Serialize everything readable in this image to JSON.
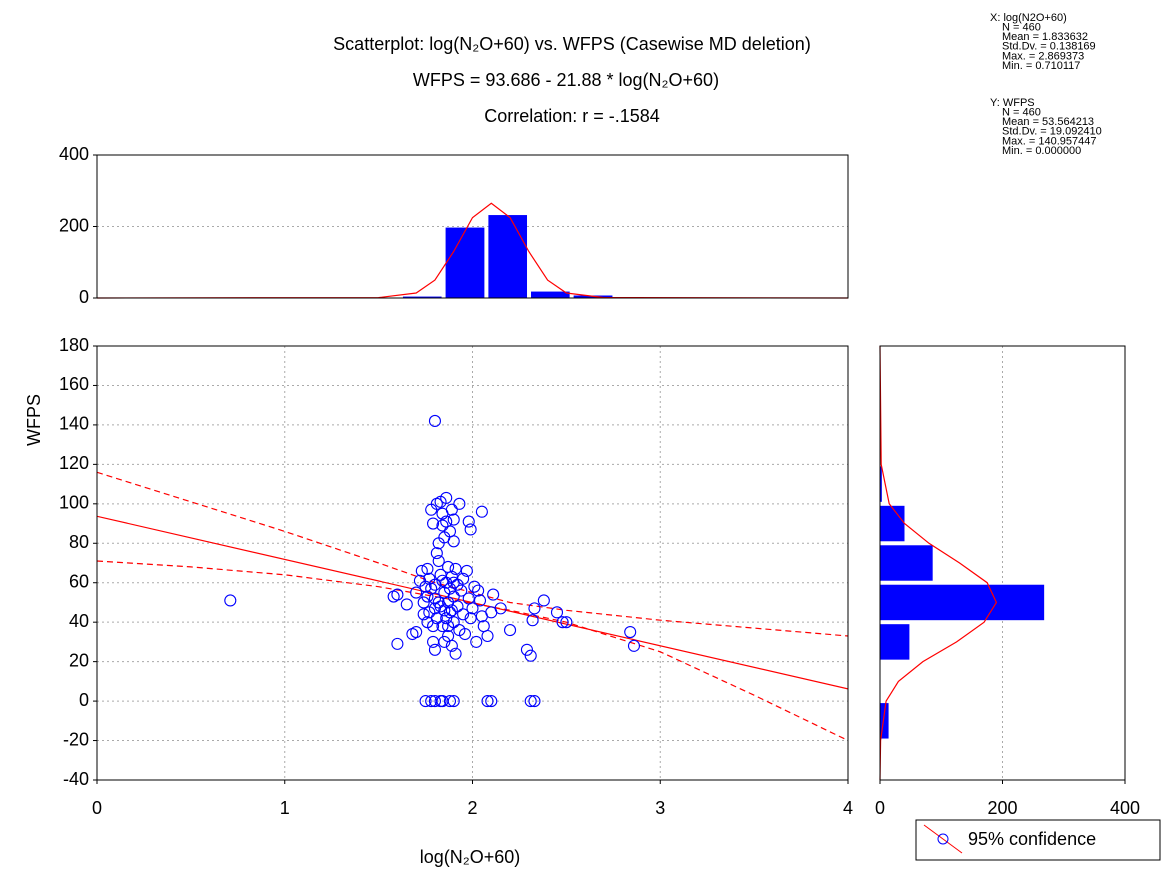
{
  "chart_data": [
    {
      "type": "scatter",
      "title": "Scatterplot: log(N₂O+60)     vs. WFPS     (Casewise MD deletion)",
      "subtitles": [
        "WFPS  = 93.686 - 21.88  *   log(N₂O+60)",
        "Correlation: r = -.1584"
      ],
      "x_label": "log(N₂O+60)",
      "y_label": "WFPS",
      "xlim": [
        0,
        4
      ],
      "ylim": [
        -40,
        180
      ],
      "xticks": [
        0,
        1,
        2,
        3,
        4
      ],
      "yticks": [
        -40,
        -20,
        0,
        20,
        40,
        60,
        80,
        100,
        120,
        140,
        160,
        180
      ],
      "grid": true,
      "legend": "bottom-right",
      "series": [
        {
          "name": "95% confidence",
          "color": "#0000ff",
          "x": [
            0.71,
            1.58,
            1.6,
            1.6,
            1.65,
            1.68,
            1.7,
            1.72,
            1.73,
            1.74,
            1.75,
            1.76,
            1.77,
            1.78,
            1.78,
            1.79,
            1.8,
            1.8,
            1.8,
            1.8,
            1.81,
            1.81,
            1.82,
            1.82,
            1.83,
            1.83,
            1.83,
            1.84,
            1.84,
            1.84,
            1.85,
            1.85,
            1.85,
            1.86,
            1.86,
            1.86,
            1.86,
            1.87,
            1.87,
            1.87,
            1.88,
            1.88,
            1.88,
            1.89,
            1.89,
            1.89,
            1.9,
            1.9,
            1.9,
            1.9,
            1.91,
            1.91,
            1.92,
            1.92,
            1.93,
            1.93,
            1.94,
            1.95,
            1.95,
            1.96,
            1.97,
            1.98,
            1.98,
            1.99,
            1.99,
            2.0,
            2.01,
            2.02,
            2.03,
            2.04,
            2.05,
            2.05,
            2.06,
            2.08,
            2.1,
            2.11,
            2.15,
            2.2,
            2.29,
            2.31,
            2.32,
            2.33,
            2.38,
            2.45,
            2.48,
            2.5,
            2.84,
            2.86,
            1.75,
            1.78,
            1.8,
            1.83,
            1.84,
            1.88,
            1.9,
            2.08,
            2.1,
            2.31,
            2.33,
            1.76,
            1.77,
            1.79,
            1.8,
            1.81,
            1.82,
            1.84,
            1.85,
            1.87,
            1.89,
            1.9,
            1.79,
            1.76,
            1.7,
            1.74
          ],
          "values": [
            51,
            53,
            54,
            29,
            49,
            34,
            35,
            61,
            66,
            44,
            58,
            67,
            62,
            57,
            97,
            90,
            26,
            142,
            52,
            47,
            100,
            75,
            80,
            71,
            101,
            64,
            48,
            38,
            89,
            95,
            30,
            83,
            55,
            103,
            91,
            60,
            42,
            68,
            50,
            33,
            86,
            45,
            57,
            97,
            63,
            28,
            92,
            53,
            40,
            81,
            67,
            24,
            59,
            48,
            100,
            36,
            56,
            62,
            44,
            34,
            66,
            52,
            91,
            87,
            42,
            47,
            58,
            30,
            56,
            51,
            96,
            43,
            38,
            33,
            45,
            54,
            47,
            36,
            26,
            23,
            41,
            47,
            51,
            45,
            40,
            40,
            35,
            28,
            0,
            0,
            0,
            0,
            0,
            0,
            0,
            0,
            0,
            0,
            0,
            53,
            45,
            38,
            59,
            42,
            50,
            61,
            46,
            38,
            46,
            60,
            30,
            40,
            55,
            50
          ]
        }
      ],
      "fit_line": {
        "color": "#ff0000",
        "x": [
          0,
          4
        ],
        "y": [
          93.686,
          6.166
        ]
      },
      "conf_upper": {
        "color": "#ff0000",
        "x": [
          0,
          0.5,
          1,
          1.5,
          1.8,
          2.2,
          2.5,
          3,
          3.5,
          4
        ],
        "y": [
          116,
          101,
          86,
          70,
          60,
          50,
          46,
          41,
          37,
          33
        ]
      },
      "conf_lower": {
        "color": "#ff0000",
        "x": [
          0,
          0.5,
          1,
          1.5,
          1.8,
          2.2,
          2.5,
          3,
          3.5,
          4
        ],
        "y": [
          71,
          68,
          64,
          58,
          53,
          46,
          40,
          25,
          3,
          -20
        ]
      },
      "stats_x": [
        "X:  log(N2O+60)",
        "N = 460",
        "Mean = 1.833632",
        "Std.Dv. = 0.138169",
        "Max. = 2.869373",
        "Min. = 0.710117"
      ],
      "stats_y": [
        "Y:  WFPS",
        "N = 460",
        "Mean = 53.564213",
        "Std.Dv. = 19.092410",
        "Max. = 140.957447",
        "Min. = 0.000000"
      ]
    },
    {
      "type": "histogram",
      "orientation": "vertical",
      "color": "#0000ff",
      "xlim": [
        0,
        4
      ],
      "ylim": [
        0,
        400
      ],
      "yticks": [
        0,
        200,
        400
      ],
      "grid": true,
      "bins": [
        0.71,
        0.937,
        1.165,
        1.392,
        1.619,
        1.846,
        2.074,
        2.301,
        2.528,
        2.756,
        2.983
      ],
      "values": [
        1,
        0,
        0,
        0,
        4,
        197,
        232,
        18,
        7,
        1
      ],
      "curve": {
        "color": "#ff0000",
        "at": [
          0,
          1.5,
          1.7,
          1.8,
          1.9,
          2.0,
          2.1,
          2.2,
          2.3,
          2.4,
          2.5,
          2.7,
          4
        ],
        "values": [
          0,
          1,
          14,
          50,
          130,
          225,
          265,
          225,
          130,
          50,
          14,
          1,
          0
        ]
      }
    },
    {
      "type": "histogram",
      "orientation": "horizontal",
      "color": "#0000ff",
      "xlim": [
        0,
        400
      ],
      "ylim": [
        -40,
        180
      ],
      "xticks": [
        0,
        200,
        400
      ],
      "grid": true,
      "bins": [
        -20,
        0,
        20,
        40,
        60,
        80,
        100,
        120,
        140,
        160
      ],
      "values": [
        14,
        0,
        48,
        268,
        86,
        40,
        3,
        0,
        1
      ],
      "curve": {
        "color": "#ff0000",
        "at": [
          -40,
          -20,
          0,
          10,
          20,
          30,
          40,
          50,
          60,
          70,
          80,
          90,
          100,
          120,
          180
        ],
        "values": [
          0,
          1,
          10,
          30,
          70,
          125,
          170,
          190,
          175,
          130,
          80,
          40,
          15,
          2,
          0
        ]
      }
    }
  ]
}
